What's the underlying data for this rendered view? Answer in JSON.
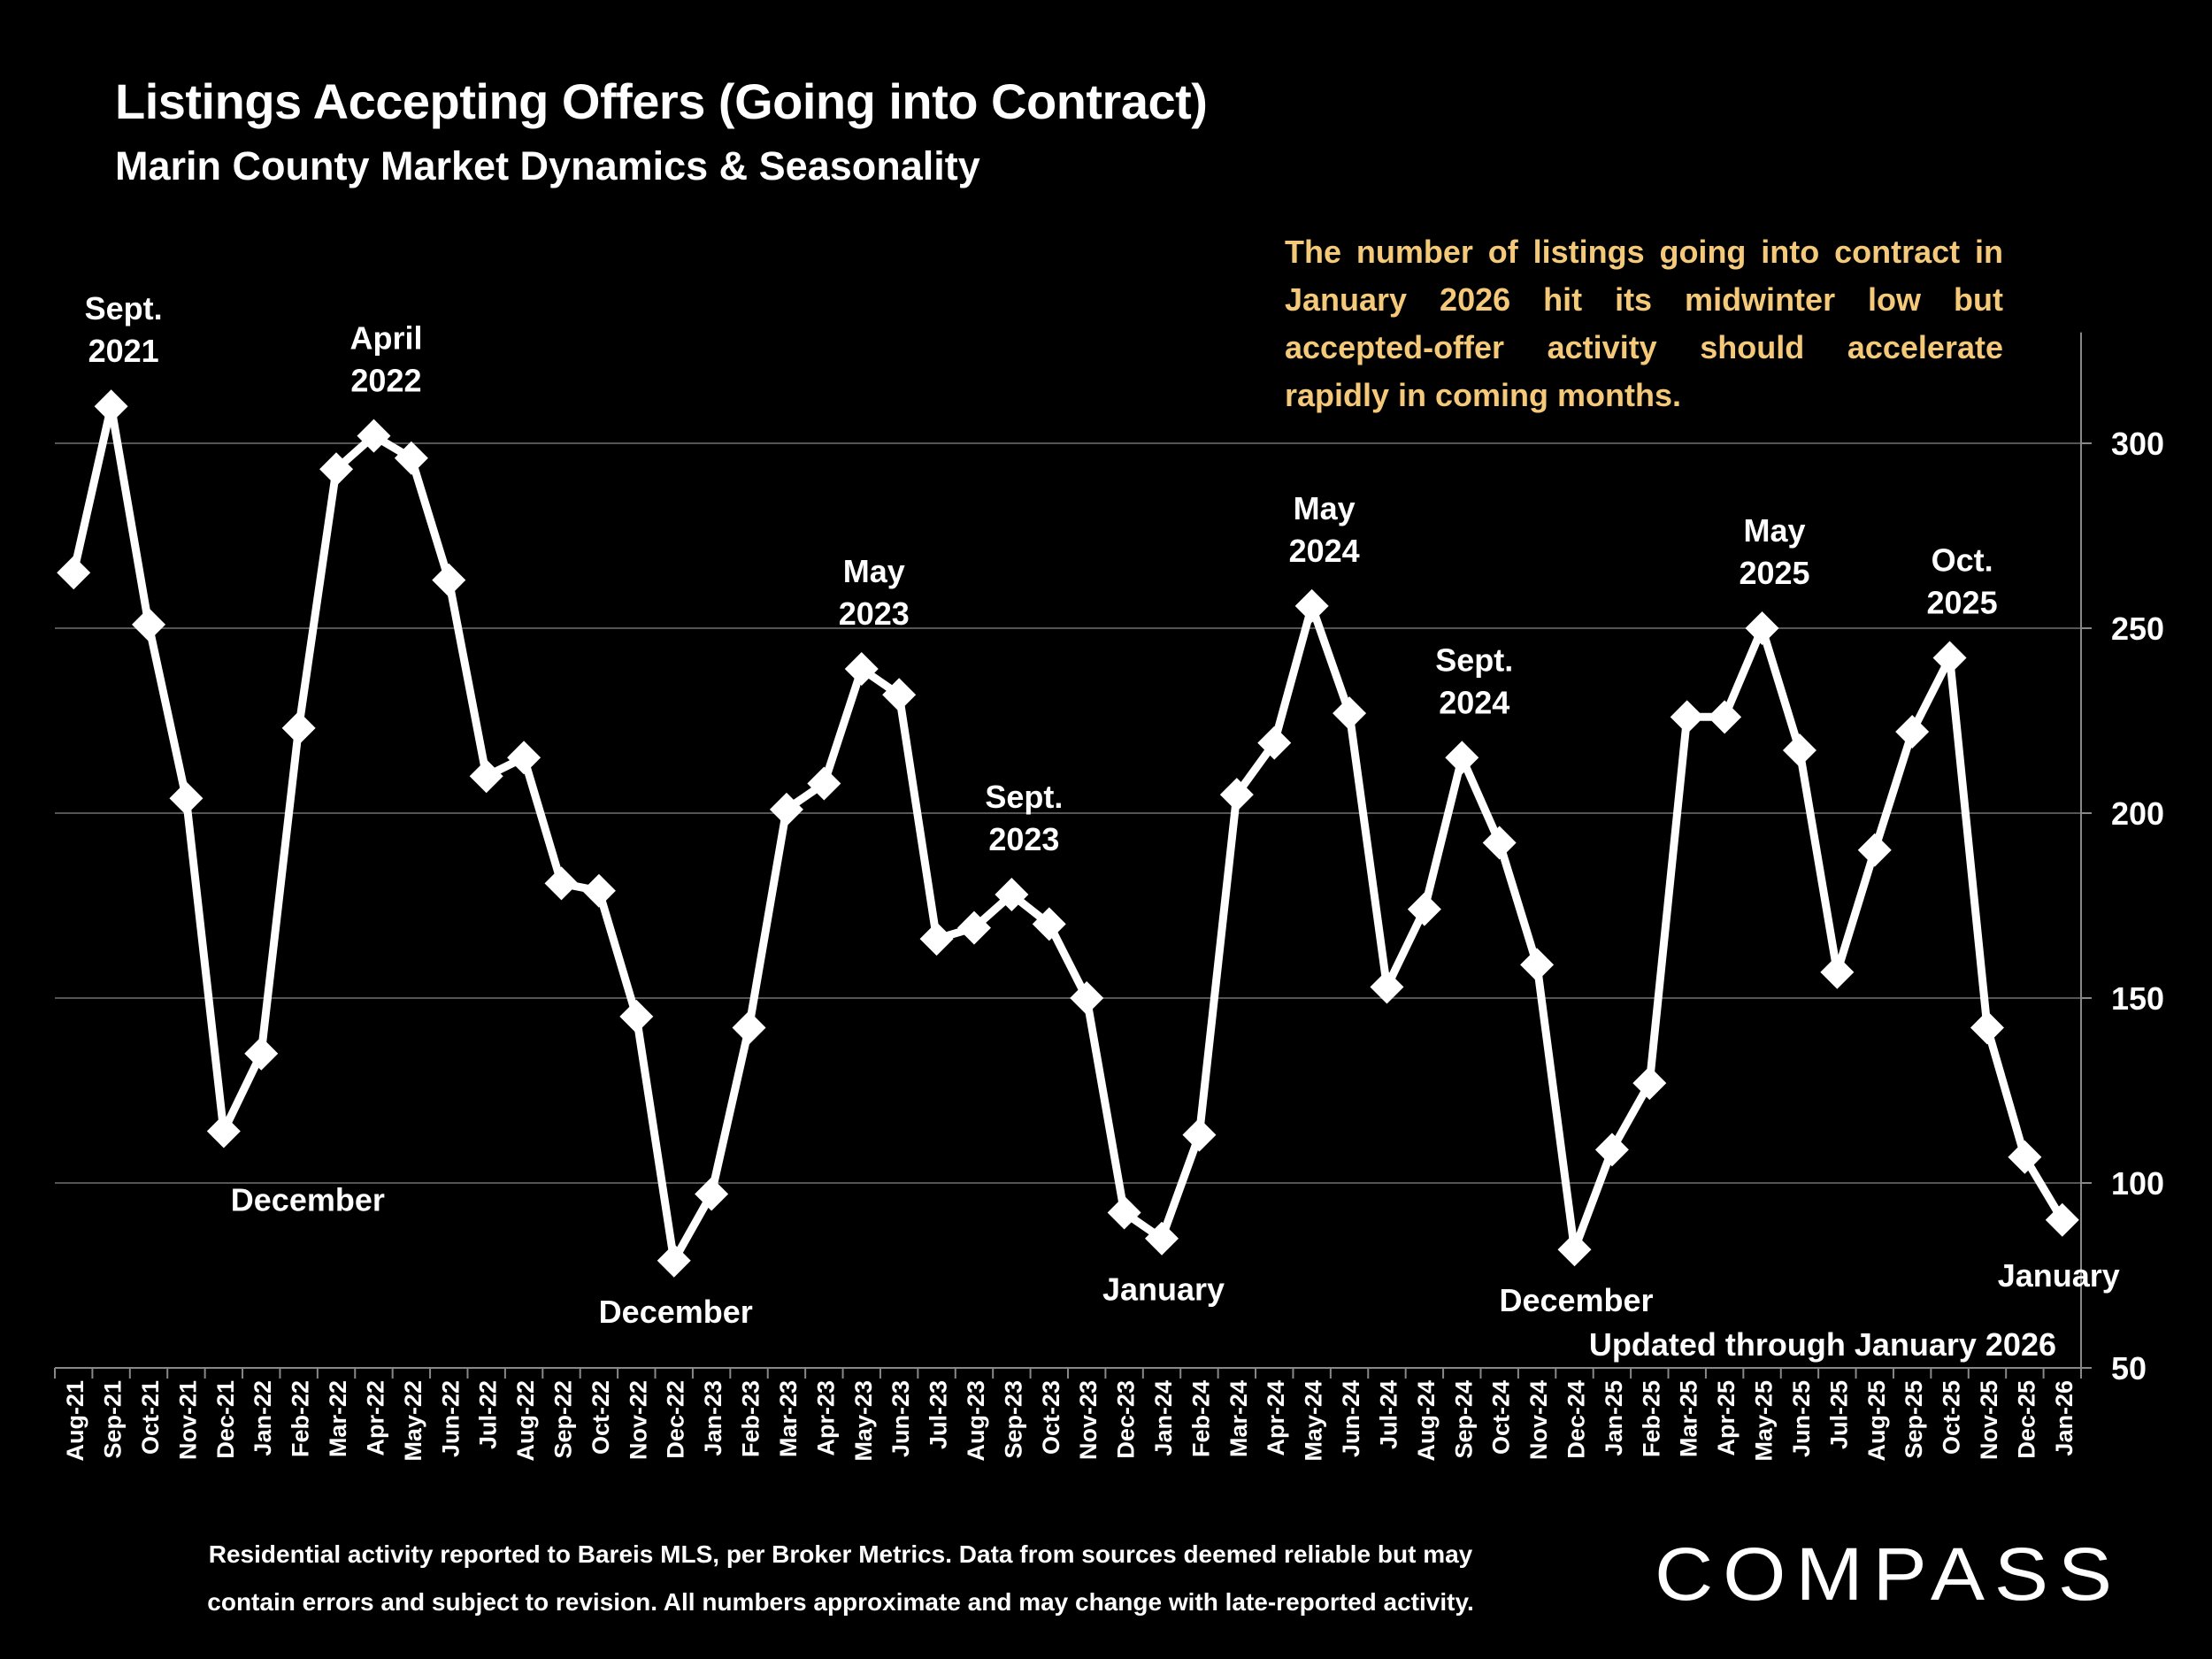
{
  "header": {
    "title": "Listings Accepting Offers (Going into Contract)",
    "subtitle": "Marin County Market Dynamics & Seasonality"
  },
  "note": "The number of listings going into contract in January 2026 hit its midwinter low but accepted-offer activity should accelerate rapidly in coming months.",
  "footnote": {
    "line1": "Residential activity reported to Bareis MLS, per Broker Metrics. Data from sources deemed reliable but may",
    "line2": "contain errors and subject to revision. All numbers approximate and may change with late-reported activity."
  },
  "logo": {
    "text": "COMPASS"
  },
  "colors": {
    "background": "#000000",
    "line": "#ffffff",
    "note": "#f5c97a",
    "grid": "#555555"
  },
  "chart_data": {
    "type": "line",
    "title": "Listings Accepting Offers (Going into Contract)",
    "ylim": [
      50,
      330
    ],
    "yticks": [
      50,
      100,
      150,
      200,
      250,
      300
    ],
    "y_axis_side": "right",
    "grid": true,
    "categories": [
      "Aug-21",
      "Sep-21",
      "Oct-21",
      "Nov-21",
      "Dec-21",
      "Jan-22",
      "Feb-22",
      "Mar-22",
      "Apr-22",
      "May-22",
      "Jun-22",
      "Jul-22",
      "Aug-22",
      "Sep-22",
      "Oct-22",
      "Nov-22",
      "Dec-22",
      "Jan-23",
      "Feb-23",
      "Mar-23",
      "Apr-23",
      "May-23",
      "Jun-23",
      "Jul-23",
      "Aug-23",
      "Sep-23",
      "Oct-23",
      "Nov-23",
      "Dec-23",
      "Jan-24",
      "Feb-24",
      "Mar-24",
      "Apr-24",
      "May-24",
      "Jun-24",
      "Jul-24",
      "Aug-24",
      "Sep-24",
      "Oct-24",
      "Nov-24",
      "Dec-24",
      "Jan-25",
      "Feb-25",
      "Mar-25",
      "Apr-25",
      "May-25",
      "Jun-25",
      "Jul-25",
      "Aug-25",
      "Sep-25",
      "Oct-25",
      "Nov-25",
      "Dec-25",
      "Jan-26"
    ],
    "series": [
      {
        "name": "Listings Accepting Offers",
        "values": [
          265,
          310,
          251,
          204,
          114,
          135,
          223,
          293,
          302,
          296,
          263,
          210,
          215,
          181,
          179,
          145,
          79,
          97,
          142,
          201,
          208,
          239,
          232,
          166,
          169,
          178,
          170,
          150,
          92,
          85,
          113,
          205,
          219,
          256,
          227,
          153,
          174,
          215,
          192,
          159,
          82,
          109,
          127,
          226,
          226,
          250,
          217,
          157,
          190,
          222,
          242,
          142,
          107,
          90
        ]
      }
    ],
    "annotations": [
      {
        "text": "Sept.\n2021",
        "index": 1,
        "position": "above"
      },
      {
        "text": "December",
        "index": 4,
        "position": "below"
      },
      {
        "text": "April\n2022",
        "index": 8,
        "position": "above"
      },
      {
        "text": "December",
        "index": 16,
        "position": "below"
      },
      {
        "text": "May\n2023",
        "index": 21,
        "position": "above"
      },
      {
        "text": "Sept.\n2023",
        "index": 25,
        "position": "above"
      },
      {
        "text": "January",
        "index": 29,
        "position": "below"
      },
      {
        "text": "May\n2024",
        "index": 33,
        "position": "above"
      },
      {
        "text": "Sept.\n2024",
        "index": 37,
        "position": "above"
      },
      {
        "text": "December",
        "index": 40,
        "position": "below"
      },
      {
        "text": "May\n2025",
        "index": 45,
        "position": "above"
      },
      {
        "text": "Oct.\n2025",
        "index": 50,
        "position": "above"
      },
      {
        "text": "January",
        "index": 53,
        "position": "below"
      }
    ],
    "updated_label": "Updated through January 2026"
  }
}
